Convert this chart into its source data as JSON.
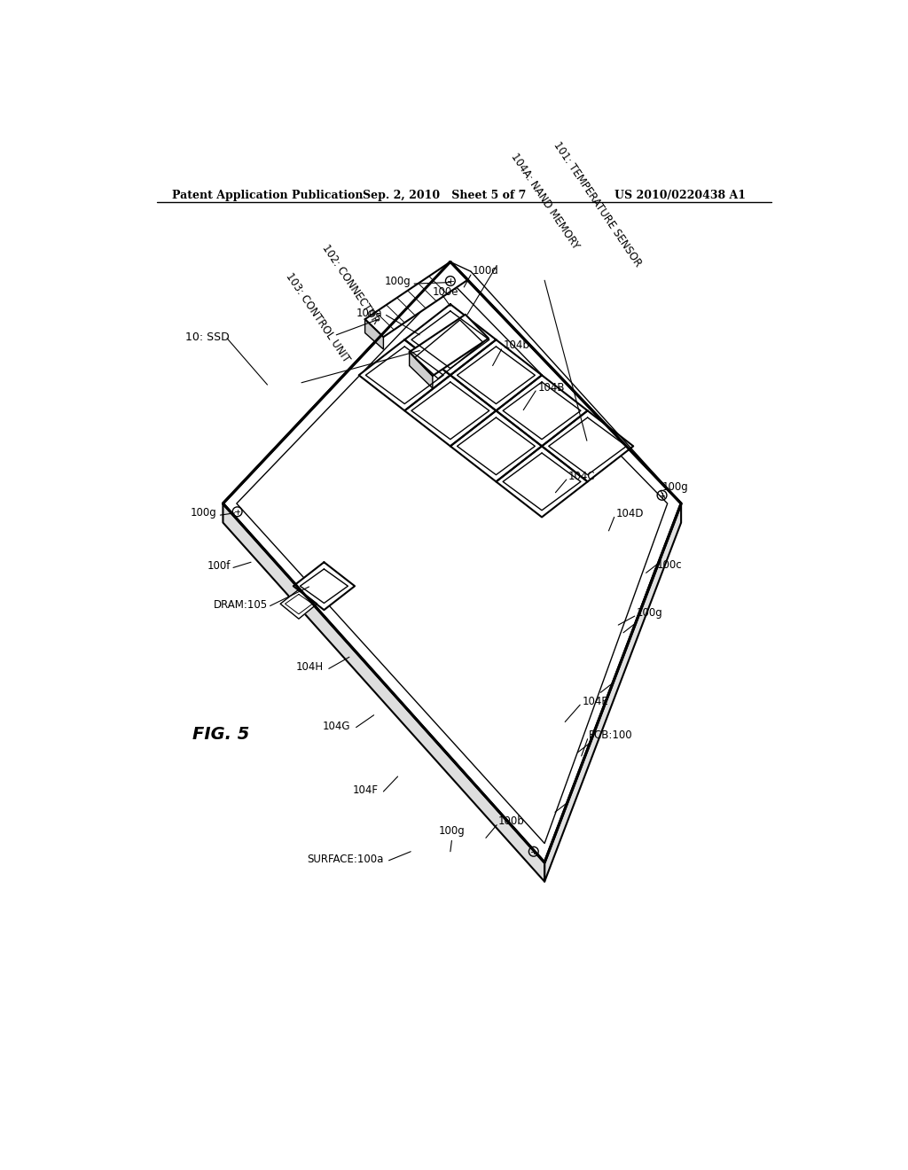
{
  "bg_color": "#ffffff",
  "line_color": "#000000",
  "header_left": "Patent Application Publication",
  "header_center": "Sep. 2, 2010   Sheet 5 of 7",
  "header_right": "US 2010/0220438 A1",
  "fig_label": "FIG. 5",
  "title_note": "10: SSD"
}
